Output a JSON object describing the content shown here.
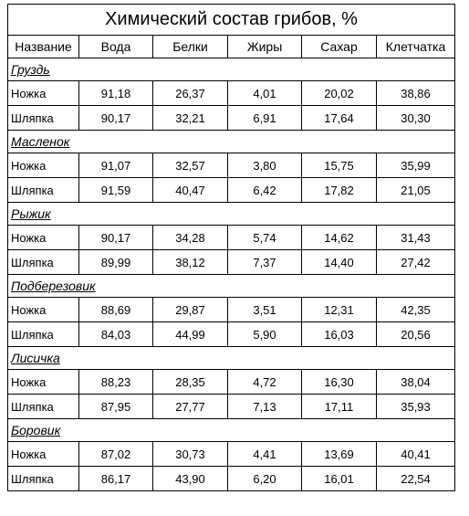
{
  "title": "Химический состав грибов, %",
  "columns": [
    "Название",
    "Вода",
    "Белки",
    "Жиры",
    "Сахар",
    "Клетчатка"
  ],
  "groups": [
    {
      "name": "Груздь",
      "rows": [
        {
          "part": "Ножка",
          "values": [
            "91,18",
            "26,37",
            "4,01",
            "20,02",
            "38,86"
          ]
        },
        {
          "part": "Шляпка",
          "values": [
            "90,17",
            "32,21",
            "6,91",
            "17,64",
            "30,30"
          ]
        }
      ]
    },
    {
      "name": "Масленок",
      "rows": [
        {
          "part": "Ножка",
          "values": [
            "91,07",
            "32,57",
            "3,80",
            "15,75",
            "35,99"
          ]
        },
        {
          "part": "Шляпка",
          "values": [
            "91,59",
            "40,47",
            "6,42",
            "17,82",
            "21,05"
          ]
        }
      ]
    },
    {
      "name": "Рыжик",
      "rows": [
        {
          "part": "Ножка",
          "values": [
            "90,17",
            "34,28",
            "5,74",
            "14,62",
            "31,43"
          ]
        },
        {
          "part": "Шляпка",
          "values": [
            "89,99",
            "38,12",
            "7,37",
            "14,40",
            "27,42"
          ]
        }
      ]
    },
    {
      "name": "Подберезовик",
      "rows": [
        {
          "part": "Ножка",
          "values": [
            "88,69",
            "29,87",
            "3,51",
            "12,31",
            "42,35"
          ]
        },
        {
          "part": "Шляпка",
          "values": [
            "84,03",
            "44,99",
            "5,90",
            "16,03",
            "20,56"
          ]
        }
      ]
    },
    {
      "name": "Лисичка",
      "rows": [
        {
          "part": "Ножка",
          "values": [
            "88,23",
            "28,35",
            "4,72",
            "16,30",
            "38,04"
          ]
        },
        {
          "part": "Шляпка",
          "values": [
            "87,95",
            "27,77",
            "7,13",
            "17,11",
            "35,93"
          ]
        }
      ]
    },
    {
      "name": "Боровик",
      "rows": [
        {
          "part": "Ножка",
          "values": [
            "87,02",
            "30,73",
            "4,41",
            "13,69",
            "40,41"
          ]
        },
        {
          "part": "Шляпка",
          "values": [
            "86,17",
            "43,90",
            "6,20",
            "16,01",
            "22,54"
          ]
        }
      ]
    }
  ]
}
